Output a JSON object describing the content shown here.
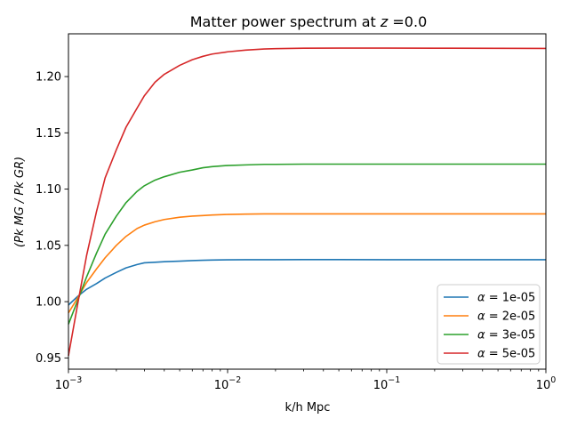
{
  "chart_data": {
    "type": "line",
    "title": "Matter power spectrum at z =0.0",
    "title_prefix": "Matter power spectrum at ",
    "title_var": "z",
    "title_suffix": " =0.0",
    "xlabel": "k/h Mpc",
    "ylabel": "(Pk MG / Pk GR)",
    "xscale": "log",
    "xlim": [
      0.001,
      1.0
    ],
    "ylim": [
      0.94,
      1.238
    ],
    "grid": false,
    "legend_position": "lower-right",
    "x_ticks": [
      {
        "value": 0.001,
        "base": "10",
        "exp": "−3"
      },
      {
        "value": 0.01,
        "base": "10",
        "exp": "−2"
      },
      {
        "value": 0.1,
        "base": "10",
        "exp": "−1"
      },
      {
        "value": 1.0,
        "base": "10",
        "exp": "0"
      }
    ],
    "y_ticks": [
      "0.95",
      "1.00",
      "1.05",
      "1.10",
      "1.15",
      "1.20"
    ],
    "x": [
      0.001,
      0.00115,
      0.0013,
      0.0015,
      0.0017,
      0.002,
      0.0023,
      0.0027,
      0.003,
      0.0035,
      0.004,
      0.005,
      0.006,
      0.007,
      0.008,
      0.01,
      0.013,
      0.017,
      0.02,
      0.03,
      0.05,
      0.1,
      0.2,
      0.5,
      1.0
    ],
    "series": [
      {
        "name": "α = 1e-05",
        "legend_prefix": "α",
        "legend_value": " = 1e-05",
        "color": "#1f77b4",
        "values": [
          0.997,
          1.005,
          1.011,
          1.016,
          1.021,
          1.026,
          1.03,
          1.033,
          1.0345,
          1.035,
          1.0355,
          1.036,
          1.0365,
          1.0368,
          1.037,
          1.0372,
          1.0373,
          1.0373,
          1.0373,
          1.0374,
          1.0374,
          1.0373,
          1.0373,
          1.0373,
          1.0373
        ]
      },
      {
        "name": "α = 2e-05",
        "legend_prefix": "α",
        "legend_value": " = 2e-05",
        "color": "#ff7f0e",
        "values": [
          0.99,
          1.004,
          1.017,
          1.029,
          1.039,
          1.05,
          1.058,
          1.065,
          1.068,
          1.071,
          1.073,
          1.075,
          1.076,
          1.0765,
          1.077,
          1.0775,
          1.0778,
          1.078,
          1.078,
          1.078,
          1.078,
          1.078,
          1.078,
          1.078,
          1.078
        ]
      },
      {
        "name": "α = 3e-05",
        "legend_prefix": "α",
        "legend_value": " = 3e-05",
        "color": "#2ca02c",
        "values": [
          0.98,
          1.002,
          1.022,
          1.043,
          1.06,
          1.076,
          1.088,
          1.098,
          1.103,
          1.108,
          1.111,
          1.115,
          1.117,
          1.119,
          1.12,
          1.121,
          1.1215,
          1.122,
          1.122,
          1.1222,
          1.1222,
          1.1222,
          1.1222,
          1.1222,
          1.1222
        ]
      },
      {
        "name": "α = 5e-05",
        "legend_prefix": "α",
        "legend_value": " = 5e-05",
        "color": "#d62728",
        "values": [
          0.952,
          1.0,
          1.041,
          1.08,
          1.11,
          1.135,
          1.155,
          1.172,
          1.183,
          1.195,
          1.202,
          1.21,
          1.215,
          1.218,
          1.22,
          1.222,
          1.2235,
          1.2245,
          1.2248,
          1.2252,
          1.2253,
          1.2253,
          1.2252,
          1.2251,
          1.225
        ]
      }
    ]
  }
}
